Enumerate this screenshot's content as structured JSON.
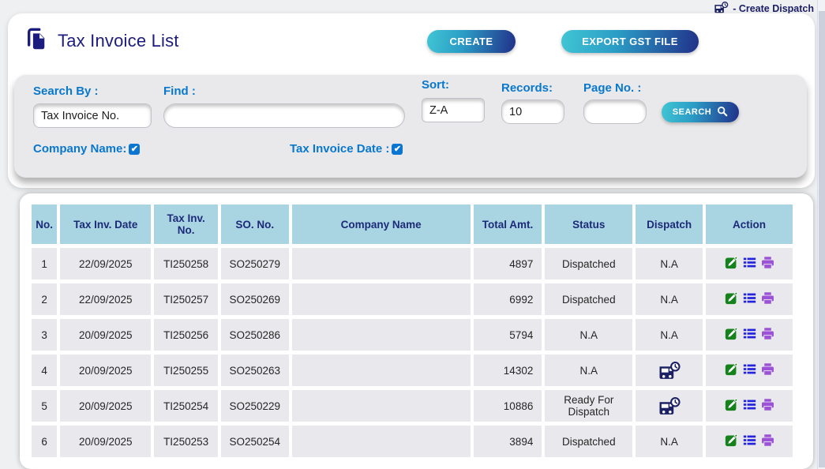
{
  "top_bar": {
    "create_dispatch_label": "- Create Dispatch"
  },
  "header": {
    "title": "Tax Invoice List",
    "create_button": "CREATE",
    "export_button": "EXPORT GST FILE"
  },
  "search_panel": {
    "search_by_label": "Search By :",
    "search_by_value": "Tax Invoice No.",
    "find_label": "Find :",
    "find_value": "",
    "sort_label": "Sort:",
    "sort_value": "Z-A",
    "records_label": "Records:",
    "records_value": "10",
    "page_no_label": "Page No. :",
    "page_no_value": "",
    "search_button": "SEARCH",
    "company_name_label": "Company Name:",
    "company_name_checked": true,
    "tax_invoice_date_label": "Tax Invoice Date :",
    "tax_invoice_date_checked": true
  },
  "table": {
    "columns": [
      "No.",
      "Tax Inv. Date",
      "Tax Inv. No.",
      "SO. No.",
      "Company Name",
      "Total Amt.",
      "Status",
      "Dispatch",
      "Action"
    ],
    "rows": [
      {
        "no": "1",
        "date": "22/09/2025",
        "inv_no": "TI250258",
        "so_no": "SO250279",
        "company": "",
        "total": "4897",
        "status": "Dispatched",
        "dispatch_text": "N.A",
        "dispatch_icon": false
      },
      {
        "no": "2",
        "date": "22/09/2025",
        "inv_no": "TI250257",
        "so_no": "SO250269",
        "company": "",
        "total": "6992",
        "status": "Dispatched",
        "dispatch_text": "N.A",
        "dispatch_icon": false
      },
      {
        "no": "3",
        "date": "20/09/2025",
        "inv_no": "TI250256",
        "so_no": "SO250286",
        "company": "",
        "total": "5794",
        "status": "N.A",
        "dispatch_text": "N.A",
        "dispatch_icon": false
      },
      {
        "no": "4",
        "date": "20/09/2025",
        "inv_no": "TI250255",
        "so_no": "SO250263",
        "company": "",
        "total": "14302",
        "status": "N.A",
        "dispatch_text": "",
        "dispatch_icon": true
      },
      {
        "no": "5",
        "date": "20/09/2025",
        "inv_no": "TI250254",
        "so_no": "SO250229",
        "company": "",
        "total": "10886",
        "status": "Ready For Dispatch",
        "dispatch_text": "",
        "dispatch_icon": true
      },
      {
        "no": "6",
        "date": "20/09/2025",
        "inv_no": "TI250253",
        "so_no": "SO250254",
        "company": "",
        "total": "3894",
        "status": "Dispatched",
        "dispatch_text": "N.A",
        "dispatch_icon": false
      }
    ]
  },
  "colors": {
    "accent_blue": "#0b76d1",
    "navy": "#1b1c7e",
    "header_bg": "#a9d5e3",
    "row_bg": "#e9e9ed",
    "button_gradient": [
      "#41c6d4",
      "#213089"
    ],
    "edit_green": "#15821c",
    "list_blue": "#2424e0",
    "print_purple": "#9b52d6",
    "truck_navy": "#1b2163"
  }
}
